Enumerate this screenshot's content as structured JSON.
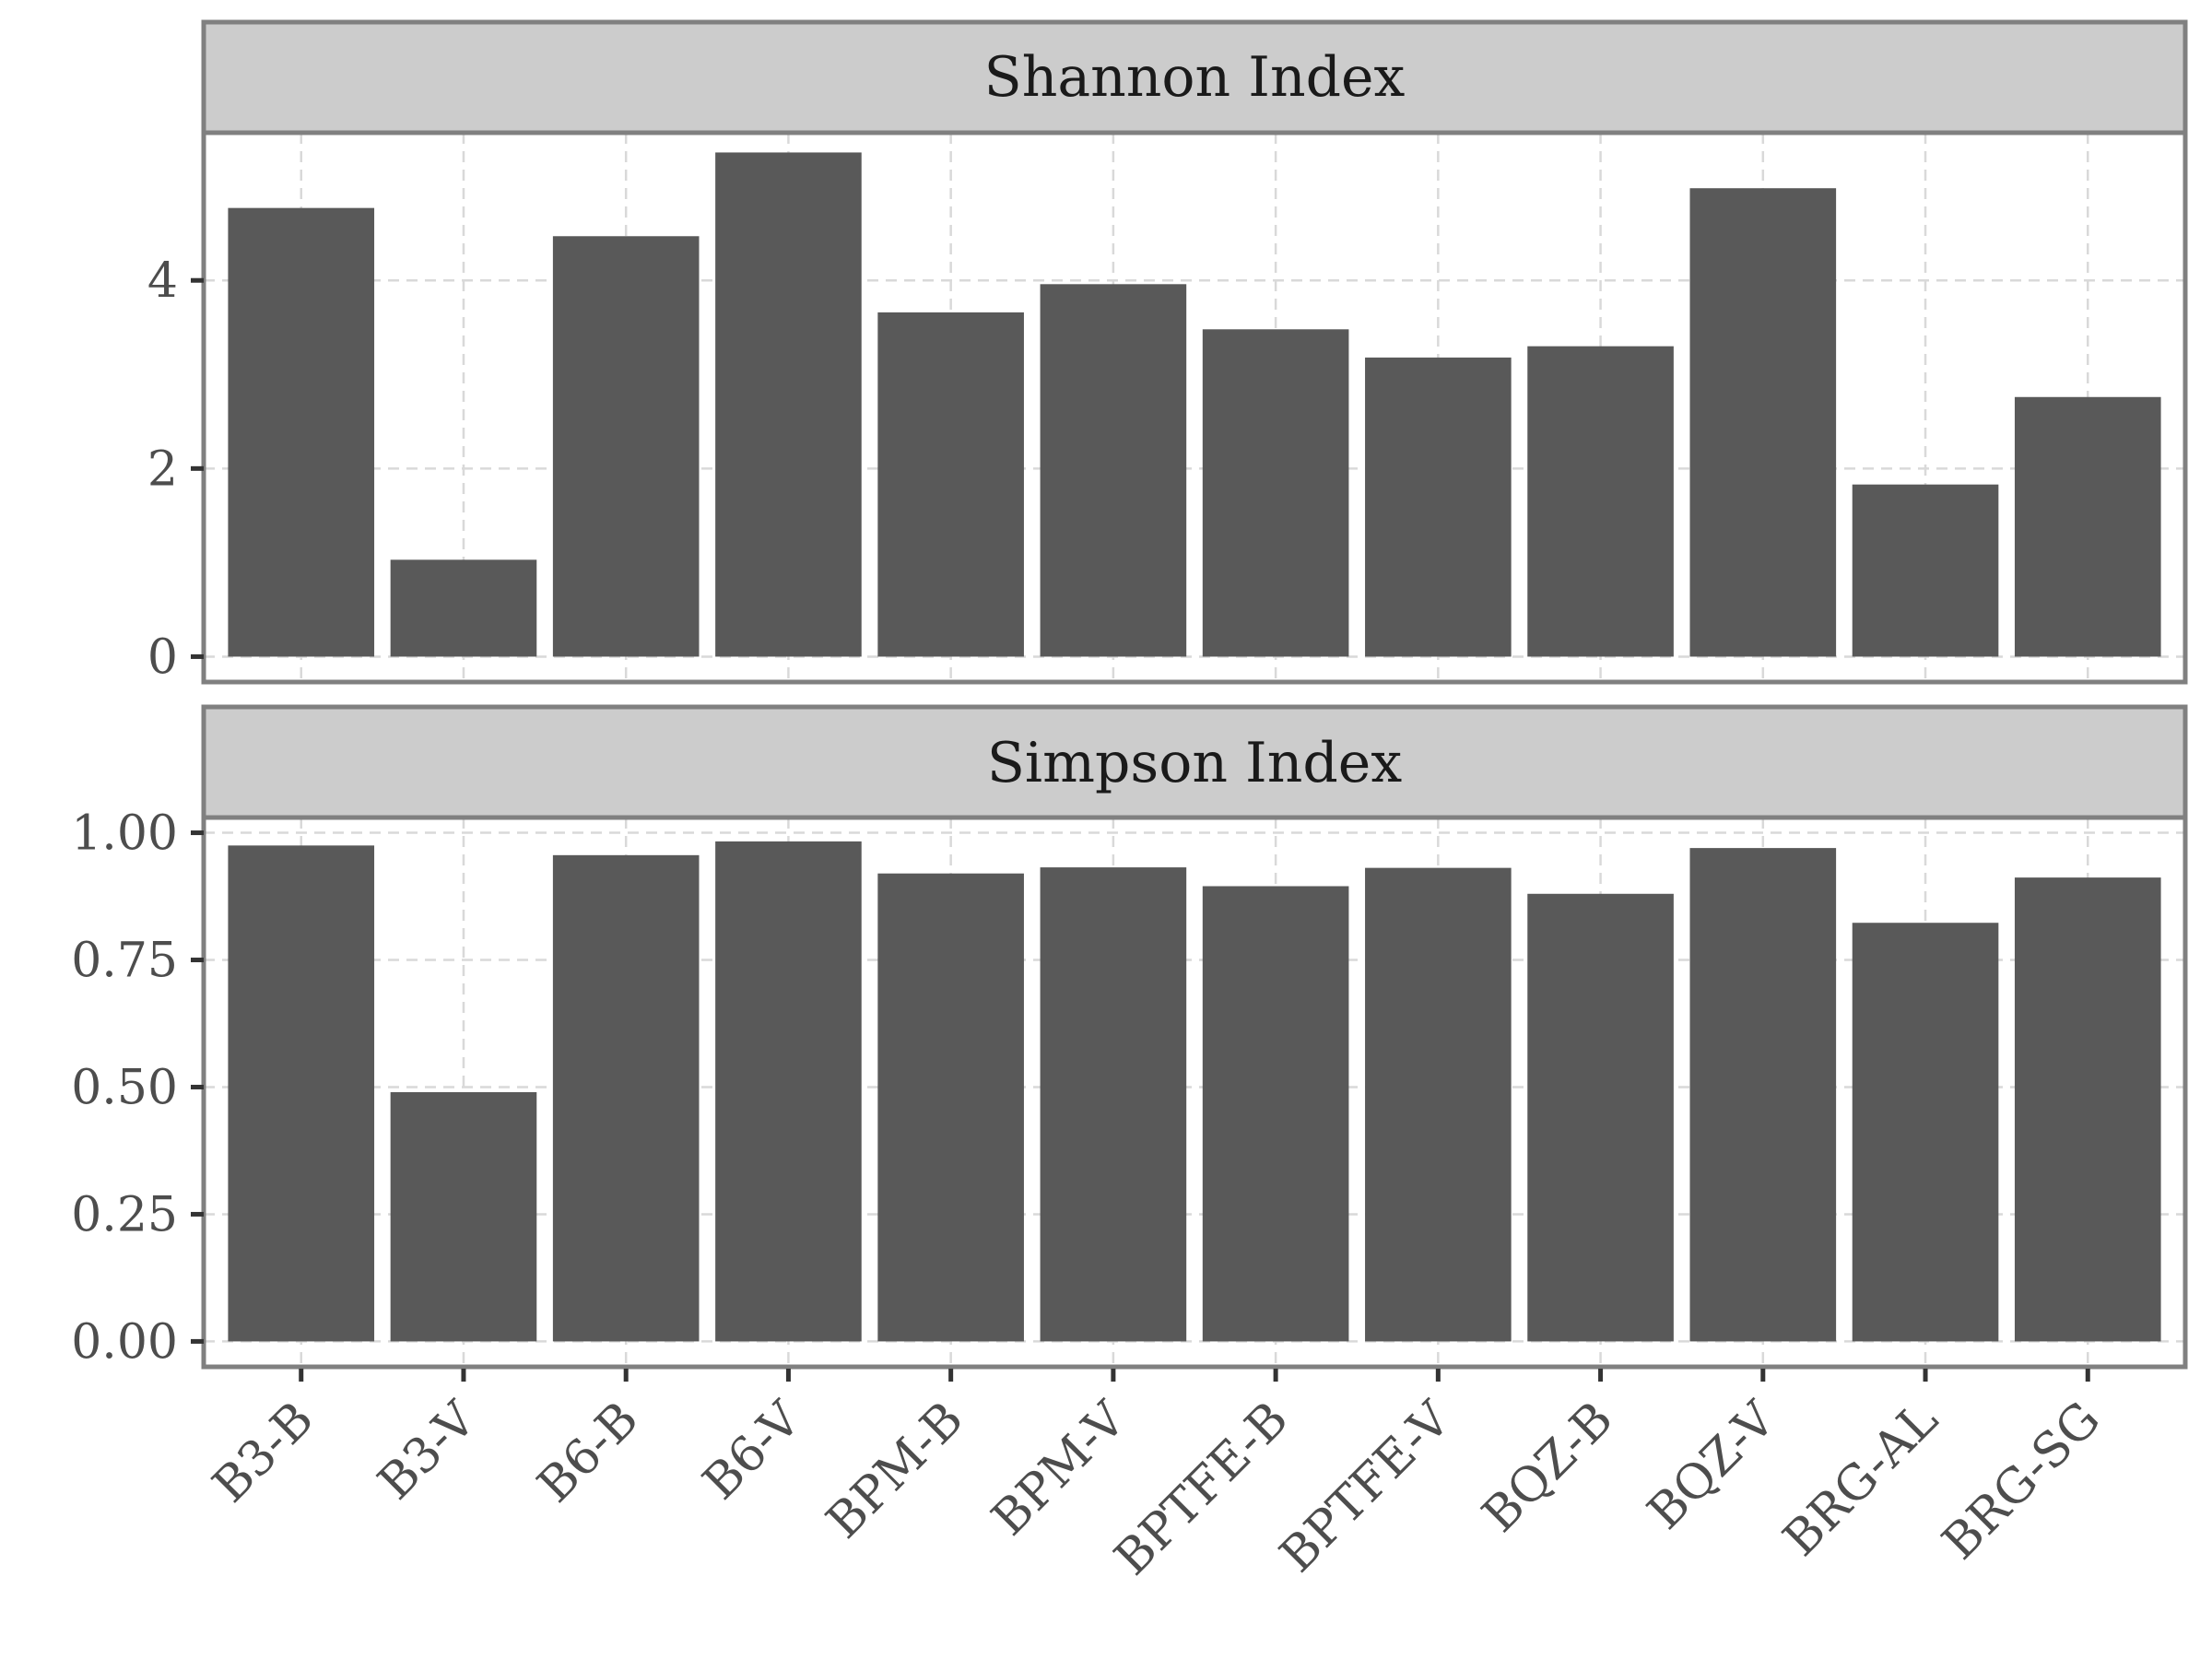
{
  "chart_data": [
    {
      "type": "bar",
      "title": "Shannon Index",
      "categories": [
        "B3-B",
        "B3-V",
        "B6-B",
        "B6-V",
        "BPM-B",
        "BPM-V",
        "BPTFE-B",
        "BPTFE-V",
        "BQZ-B",
        "BQZ-V",
        "BRG-AL",
        "BRG-SG"
      ],
      "values": [
        4.77,
        1.03,
        4.47,
        5.36,
        3.66,
        3.96,
        3.48,
        3.18,
        3.3,
        4.98,
        1.83,
        2.76
      ],
      "yticks": [
        0,
        2,
        4
      ],
      "ytick_labels": [
        "0",
        "2",
        "4"
      ],
      "ylim": [
        -0.27,
        5.57
      ],
      "grid": true,
      "bar_color": "#595959"
    },
    {
      "type": "bar",
      "title": "Simpson Index",
      "categories": [
        "B3-B",
        "B3-V",
        "B6-B",
        "B6-V",
        "BPM-B",
        "BPM-V",
        "BPTFE-B",
        "BPTFE-V",
        "BQZ-B",
        "BQZ-V",
        "BRG-AL",
        "BRG-SG"
      ],
      "values": [
        0.975,
        0.49,
        0.956,
        0.983,
        0.92,
        0.932,
        0.895,
        0.931,
        0.88,
        0.97,
        0.823,
        0.912
      ],
      "yticks": [
        0,
        0.25,
        0.5,
        0.75,
        1.0
      ],
      "ytick_labels": [
        "0.00",
        "0.25",
        "0.50",
        "0.75",
        "1.00"
      ],
      "ylim": [
        -0.05,
        1.03
      ],
      "grid": true,
      "bar_color": "#595959"
    }
  ]
}
